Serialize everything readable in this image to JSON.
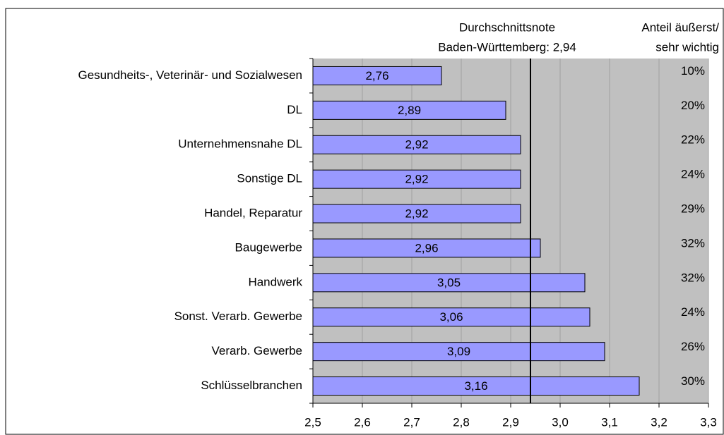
{
  "chart_data": {
    "type": "bar",
    "orientation": "horizontal",
    "annotations": {
      "reference_title": "Durchschnittsnote",
      "reference_label": "Baden-Württemberg: 2,94",
      "reference_value": 2.94,
      "share_title": "Anteil äußerst/",
      "share_subtitle": "sehr wichtig"
    },
    "categories": [
      "Gesundheits-, Veterinär- und Sozialwesen",
      "DL",
      "Unternehmensnahe DL",
      "Sonstige DL",
      "Handel, Reparatur",
      "Baugewerbe",
      "Handwerk",
      "Sonst. Verarb. Gewerbe",
      "Verarb. Gewerbe",
      "Schlüsselbranchen"
    ],
    "values": [
      2.76,
      2.89,
      2.92,
      2.92,
      2.92,
      2.96,
      3.05,
      3.06,
      3.09,
      3.16
    ],
    "value_labels": [
      "2,76",
      "2,89",
      "2,92",
      "2,92",
      "2,92",
      "2,96",
      "3,05",
      "3,06",
      "3,09",
      "3,16"
    ],
    "share_labels": [
      "10%",
      "20%",
      "22%",
      "24%",
      "29%",
      "32%",
      "32%",
      "24%",
      "26%",
      "30%"
    ],
    "color": "#9999ff",
    "xlim": [
      2.5,
      3.3
    ],
    "xticks": [
      {
        "value": 2.5,
        "label": "2,5"
      },
      {
        "value": 2.6,
        "label": "2,6"
      },
      {
        "value": 2.7,
        "label": "2,7"
      },
      {
        "value": 2.8,
        "label": "2,8"
      },
      {
        "value": 2.9,
        "label": "2,9"
      },
      {
        "value": 3.0,
        "label": "3,0"
      },
      {
        "value": 3.1,
        "label": "3,1"
      },
      {
        "value": 3.2,
        "label": "3,2"
      },
      {
        "value": 3.3,
        "label": "3,3"
      }
    ],
    "grid": true
  }
}
